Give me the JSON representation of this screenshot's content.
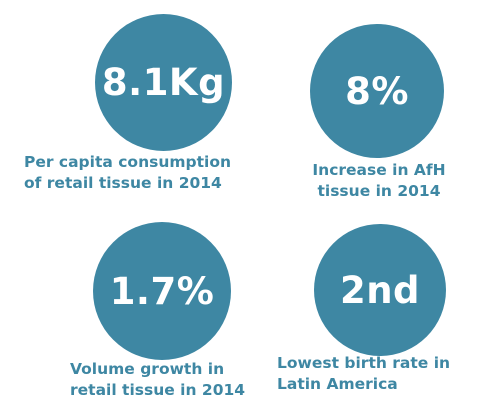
{
  "colors": {
    "accent": "#3e87a3",
    "circle_text": "#ffffff",
    "background": "#ffffff"
  },
  "stats": [
    {
      "value": "8.1Kg",
      "caption_line1": "Per capita consumption",
      "caption_line2": "of retail tissue in 2014"
    },
    {
      "value": "8%",
      "caption_line1": "Increase in AfH",
      "caption_line2": "tissue in 2014"
    },
    {
      "value": "1.7%",
      "caption_line1": "Volume growth in",
      "caption_line2": "retail tissue in 2014"
    },
    {
      "value": "2nd",
      "caption_line1": "Lowest birth rate in",
      "caption_line2": "Latin America"
    }
  ]
}
